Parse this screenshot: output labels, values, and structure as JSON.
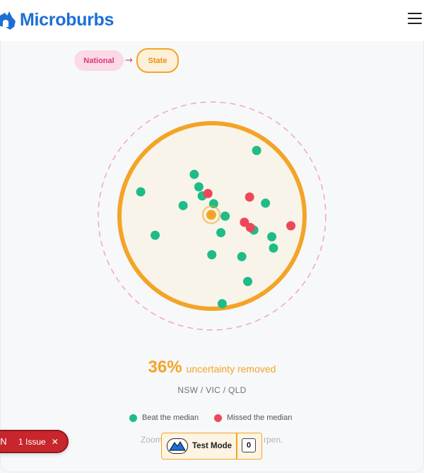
{
  "app": {
    "name": "Microburbs"
  },
  "header": {
    "logo_icon": "australia-map-icon",
    "menu_icon": "hamburger-icon"
  },
  "scope_toggle": {
    "from_label": "National",
    "to_label": "State",
    "arrow": "→"
  },
  "colors": {
    "beat": "#1ebc86",
    "missed": "#ec4858",
    "accent": "#f3a427",
    "national": "#d63a7a",
    "brand": "#1d6fd6"
  },
  "stat": {
    "value": "36%",
    "label": "uncertainty removed"
  },
  "region": "NSW / VIC / QLD",
  "legend": {
    "beat_label": "Beat the median",
    "missed_label": "Missed the median"
  },
  "zoom_hint": {
    "left": "Zoom",
    "right": "rpen."
  },
  "issue_badge": {
    "letter": "N",
    "text": "1 Issue",
    "close": "✕"
  },
  "test_mode": {
    "label": "Test Mode",
    "count": "0"
  },
  "chart_data": {
    "type": "scatter",
    "x": [],
    "y": [],
    "series": [
      {
        "name": "Beat the median",
        "color": "#1ebc86",
        "points": [
          [
            0.741,
            0.147
          ],
          [
            0.404,
            0.276
          ],
          [
            0.115,
            0.37
          ],
          [
            0.429,
            0.343
          ],
          [
            0.447,
            0.392
          ],
          [
            0.344,
            0.444
          ],
          [
            0.509,
            0.434
          ],
          [
            0.789,
            0.431
          ],
          [
            0.571,
            0.501
          ],
          [
            0.193,
            0.604
          ],
          [
            0.548,
            0.59
          ],
          [
            0.726,
            0.576
          ],
          [
            0.823,
            0.612
          ],
          [
            0.832,
            0.673
          ],
          [
            0.499,
            0.709
          ],
          [
            0.661,
            0.719
          ],
          [
            0.693,
            0.853
          ],
          [
            0.555,
            0.973
          ]
        ]
      },
      {
        "name": "Missed the median",
        "color": "#ec4858",
        "points": [
          [
            0.478,
            0.379
          ],
          [
            0.703,
            0.398
          ],
          [
            0.675,
            0.534
          ],
          [
            0.707,
            0.562
          ],
          [
            0.926,
            0.553
          ]
        ]
      }
    ],
    "focus": {
      "color": "#f3a427",
      "point": [
        0.496,
        0.494
      ]
    }
  }
}
